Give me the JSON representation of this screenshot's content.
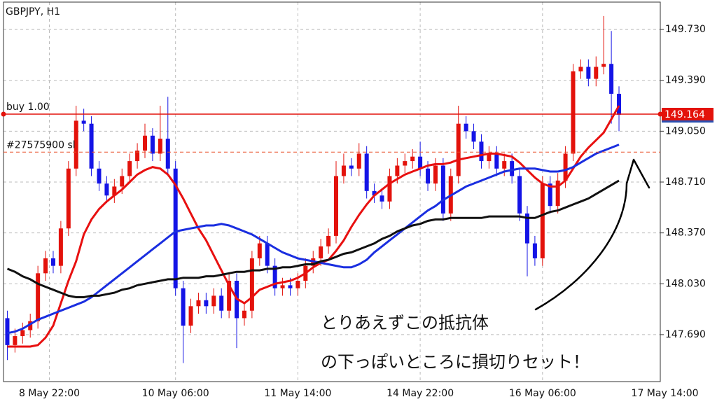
{
  "chart_data": {
    "type": "candlestick",
    "title": "GBPJPY, H1",
    "up_color": "#e3120b",
    "down_color": "#1414e6",
    "xlim": [
      -0.5,
      86.5
    ],
    "xticks": [
      {
        "value": 5.5,
        "label": "8 May 22:00"
      },
      {
        "value": 22,
        "label": "10 May 06:00"
      },
      {
        "value": 38,
        "label": "11 May 14:00"
      },
      {
        "value": 54,
        "label": "14 May 22:00"
      },
      {
        "value": 70,
        "label": "16 May 06:00"
      },
      {
        "value": 86,
        "label": "17 May 14:00"
      }
    ],
    "ylim": [
      147.376,
      149.927
    ],
    "yticks": [
      {
        "value": 147.69,
        "label": "147.690"
      },
      {
        "value": 148.03,
        "label": "148.030"
      },
      {
        "value": 148.37,
        "label": "148.370"
      },
      {
        "value": 148.71,
        "label": "148.710"
      },
      {
        "value": 149.05,
        "label": "149.050"
      },
      {
        "value": 149.39,
        "label": "149.390"
      },
      {
        "value": 149.73,
        "label": "149.730"
      }
    ],
    "grid": true,
    "open": [
      147.8,
      147.62,
      147.68,
      147.72,
      147.78,
      148.1,
      148.2,
      148.15,
      148.4,
      148.8,
      149.12,
      149.1,
      148.8,
      148.7,
      148.62,
      148.68,
      148.75,
      148.85,
      148.92,
      149.02,
      148.9,
      149.0,
      148.8,
      148.0,
      147.75,
      147.88,
      147.92,
      147.88,
      147.95,
      147.85,
      148.05,
      147.8,
      147.85,
      148.2,
      148.3,
      148.15,
      148.0,
      148.02,
      148.0,
      148.05,
      148.15,
      148.2,
      148.28,
      148.35,
      148.75,
      148.82,
      148.8,
      148.9,
      148.65,
      148.62,
      148.58,
      148.75,
      148.82,
      148.85,
      148.88,
      148.8,
      148.7,
      148.82,
      148.5,
      148.75,
      149.1,
      149.05,
      148.98,
      148.85,
      148.9,
      148.8,
      148.85,
      148.75,
      148.5,
      148.3,
      148.2,
      148.7,
      148.55,
      148.72,
      148.9,
      149.45,
      149.48,
      149.4,
      149.48,
      149.5,
      149.3
    ],
    "high": [
      147.85,
      147.73,
      147.77,
      147.83,
      148.15,
      148.25,
      148.25,
      148.45,
      148.85,
      149.22,
      149.2,
      149.15,
      148.85,
      148.75,
      148.73,
      148.8,
      148.9,
      148.97,
      149.1,
      149.07,
      149.22,
      149.28,
      148.85,
      148.05,
      147.93,
      147.97,
      147.97,
      148.0,
      148.0,
      148.1,
      148.1,
      147.9,
      148.25,
      148.35,
      148.35,
      148.2,
      148.07,
      148.07,
      148.1,
      148.2,
      148.25,
      148.33,
      148.4,
      148.85,
      148.9,
      148.87,
      148.97,
      148.95,
      148.7,
      148.67,
      148.8,
      148.87,
      148.9,
      148.93,
      148.98,
      148.85,
      148.87,
      148.87,
      148.8,
      149.22,
      149.15,
      149.1,
      149.03,
      148.95,
      148.95,
      148.9,
      148.9,
      148.8,
      148.55,
      148.35,
      148.75,
      148.75,
      148.77,
      148.95,
      149.5,
      149.53,
      149.53,
      149.55,
      149.82,
      149.72,
      149.35
    ],
    "low": [
      147.52,
      147.57,
      147.63,
      147.67,
      147.73,
      148.05,
      148.1,
      148.1,
      148.35,
      148.75,
      149.05,
      148.75,
      148.65,
      148.57,
      148.57,
      148.63,
      148.7,
      148.8,
      148.87,
      148.85,
      148.85,
      148.75,
      147.95,
      147.5,
      147.7,
      147.83,
      147.83,
      147.83,
      147.8,
      147.8,
      147.6,
      147.75,
      147.8,
      148.15,
      148.1,
      147.95,
      147.95,
      147.95,
      147.95,
      148.0,
      148.1,
      148.15,
      148.23,
      148.3,
      148.7,
      148.75,
      148.75,
      148.6,
      148.57,
      148.53,
      148.53,
      148.7,
      148.77,
      148.8,
      148.75,
      148.65,
      148.65,
      148.45,
      148.45,
      148.7,
      149.0,
      148.93,
      148.8,
      148.8,
      148.75,
      148.75,
      148.7,
      148.45,
      148.08,
      148.15,
      148.15,
      148.5,
      148.5,
      148.67,
      148.85,
      149.4,
      149.35,
      149.35,
      149.43,
      149.1,
      149.05
    ],
    "close": [
      147.62,
      147.68,
      147.72,
      147.78,
      148.1,
      148.2,
      148.15,
      148.4,
      148.8,
      149.12,
      149.1,
      148.8,
      148.7,
      148.62,
      148.68,
      148.75,
      148.85,
      148.92,
      149.02,
      148.9,
      149.0,
      148.8,
      148.0,
      147.75,
      147.88,
      147.92,
      147.88,
      147.95,
      147.85,
      148.05,
      147.8,
      147.85,
      148.2,
      148.3,
      148.15,
      148.0,
      148.02,
      148.0,
      148.05,
      148.15,
      148.2,
      148.28,
      148.35,
      148.75,
      148.82,
      148.8,
      148.9,
      148.65,
      148.62,
      148.58,
      148.75,
      148.82,
      148.85,
      148.88,
      148.8,
      148.7,
      148.82,
      148.5,
      148.75,
      149.1,
      149.05,
      148.98,
      148.85,
      148.9,
      148.8,
      148.85,
      148.75,
      148.5,
      148.3,
      148.2,
      148.7,
      148.55,
      148.72,
      148.9,
      149.45,
      149.48,
      149.4,
      149.48,
      149.5,
      149.3,
      149.16
    ],
    "lines": [
      {
        "color": "#e81010",
        "values": [
          147.61,
          147.61,
          147.61,
          147.61,
          147.62,
          147.67,
          147.75,
          147.9,
          148.05,
          148.18,
          148.36,
          148.46,
          148.53,
          148.58,
          148.62,
          148.66,
          148.71,
          148.76,
          148.79,
          148.81,
          148.8,
          148.76,
          148.69,
          148.6,
          148.5,
          148.4,
          148.32,
          148.22,
          148.12,
          148.02,
          147.93,
          147.9,
          147.94,
          147.99,
          148.01,
          148.03,
          148.04,
          148.05,
          148.07,
          148.1,
          148.14,
          148.17,
          148.19,
          148.25,
          148.32,
          148.41,
          148.49,
          148.56,
          148.62,
          148.66,
          148.7,
          148.73,
          148.76,
          148.78,
          148.8,
          148.82,
          148.83,
          148.83,
          148.84,
          148.86,
          148.87,
          148.88,
          148.89,
          148.9,
          148.9,
          148.89,
          148.88,
          148.84,
          148.79,
          148.74,
          148.7,
          148.68,
          148.68,
          148.72,
          148.8,
          148.88,
          148.94,
          148.99,
          149.04,
          149.13,
          149.22
        ]
      },
      {
        "color": "#1a2ee0",
        "values": [
          147.7,
          147.71,
          147.73,
          147.76,
          147.79,
          147.81,
          147.83,
          147.85,
          147.87,
          147.89,
          147.91,
          147.94,
          147.98,
          148.02,
          148.06,
          148.1,
          148.14,
          148.18,
          148.22,
          148.26,
          148.3,
          148.34,
          148.38,
          148.39,
          148.4,
          148.41,
          148.42,
          148.42,
          148.43,
          148.42,
          148.4,
          148.38,
          148.36,
          148.33,
          148.3,
          148.27,
          148.24,
          148.22,
          148.2,
          148.19,
          148.18,
          148.17,
          148.16,
          148.15,
          148.14,
          148.14,
          148.16,
          148.19,
          148.24,
          148.28,
          148.32,
          148.36,
          148.4,
          148.44,
          148.48,
          148.52,
          148.55,
          148.59,
          148.62,
          148.65,
          148.68,
          148.7,
          148.72,
          148.74,
          148.76,
          148.78,
          148.79,
          148.8,
          148.8,
          148.8,
          148.79,
          148.78,
          148.78,
          148.79,
          148.81,
          148.84,
          148.87,
          148.9,
          148.92,
          148.94,
          148.96
        ]
      },
      {
        "color": "#111111",
        "values": [
          148.13,
          148.11,
          148.08,
          148.06,
          148.03,
          148.01,
          147.99,
          147.97,
          147.95,
          147.94,
          147.94,
          147.95,
          147.95,
          147.96,
          147.97,
          147.99,
          148.0,
          148.02,
          148.03,
          148.04,
          148.05,
          148.06,
          148.06,
          148.07,
          148.07,
          148.07,
          148.08,
          148.08,
          148.09,
          148.1,
          148.11,
          148.11,
          148.12,
          148.12,
          148.13,
          148.13,
          148.14,
          148.14,
          148.15,
          148.16,
          148.16,
          148.18,
          148.19,
          148.21,
          148.23,
          148.24,
          148.26,
          148.28,
          148.3,
          148.33,
          148.35,
          148.38,
          148.4,
          148.42,
          148.43,
          148.45,
          148.46,
          148.46,
          148.47,
          148.47,
          148.47,
          148.47,
          148.47,
          148.48,
          148.48,
          148.48,
          148.48,
          148.48,
          148.47,
          148.47,
          148.49,
          148.51,
          148.52,
          148.54,
          148.56,
          148.58,
          148.6,
          148.63,
          148.66,
          148.69,
          148.72
        ]
      }
    ],
    "hlines": [
      {
        "label": "buy 1.00",
        "value": 149.164,
        "color": "#e3120b",
        "style": "solid"
      },
      {
        "label": "#27575900 sl",
        "value": 148.91,
        "color": "#e8502a",
        "style": "dashed"
      }
    ],
    "annotations": [
      "とりあえずこの抵抗体",
      "の下っぽいところに損切りセット！"
    ]
  }
}
